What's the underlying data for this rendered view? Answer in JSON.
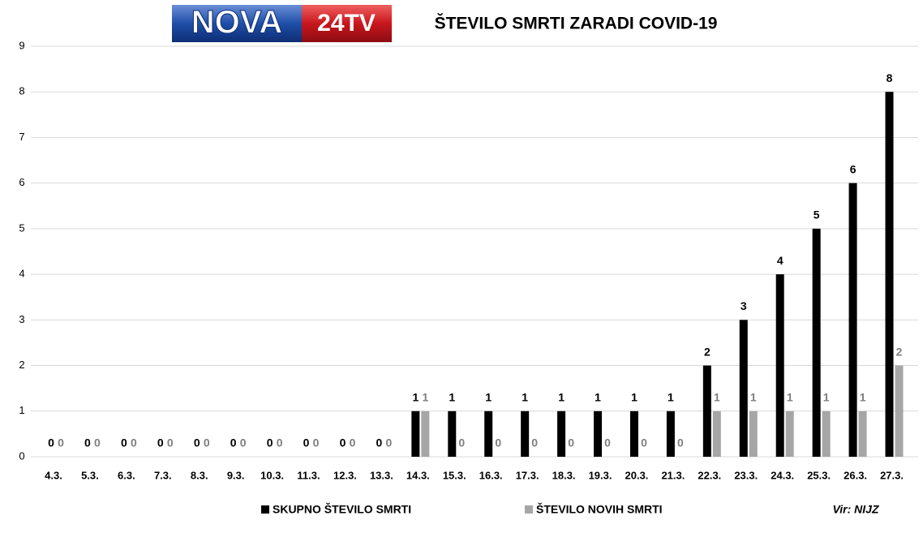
{
  "chart_data": {
    "type": "bar",
    "title": "ŠTEVILO SMRTI ZARADI COVID-19",
    "logo": {
      "left": "NOVA",
      "right": "24TV"
    },
    "source": "Vir: NIJZ",
    "categories": [
      "4.3.",
      "5.3.",
      "6.3.",
      "7.3.",
      "8.3.",
      "9.3.",
      "10.3.",
      "11.3.",
      "12.3.",
      "13.3.",
      "14.3.",
      "15.3.",
      "16.3.",
      "17.3.",
      "18.3.",
      "19.3.",
      "20.3.",
      "21.3.",
      "22.3.",
      "23.3.",
      "24.3.",
      "25.3.",
      "26.3.",
      "27.3."
    ],
    "series": [
      {
        "name": "SKUPNO ŠTEVILO SMRTI",
        "color": "#000000",
        "values": [
          0,
          0,
          0,
          0,
          0,
          0,
          0,
          0,
          0,
          0,
          1,
          1,
          1,
          1,
          1,
          1,
          1,
          1,
          2,
          3,
          4,
          5,
          6,
          8
        ]
      },
      {
        "name": "ŠTEVILO NOVIH SMRTI",
        "color": "#a6a6a6",
        "values": [
          0,
          0,
          0,
          0,
          0,
          0,
          0,
          0,
          0,
          0,
          1,
          0,
          0,
          0,
          0,
          0,
          0,
          0,
          1,
          1,
          1,
          1,
          1,
          2
        ]
      }
    ],
    "ylim": [
      0,
      9
    ],
    "yticks": [
      0,
      1,
      2,
      3,
      4,
      5,
      6,
      7,
      8,
      9
    ],
    "grid": true
  }
}
